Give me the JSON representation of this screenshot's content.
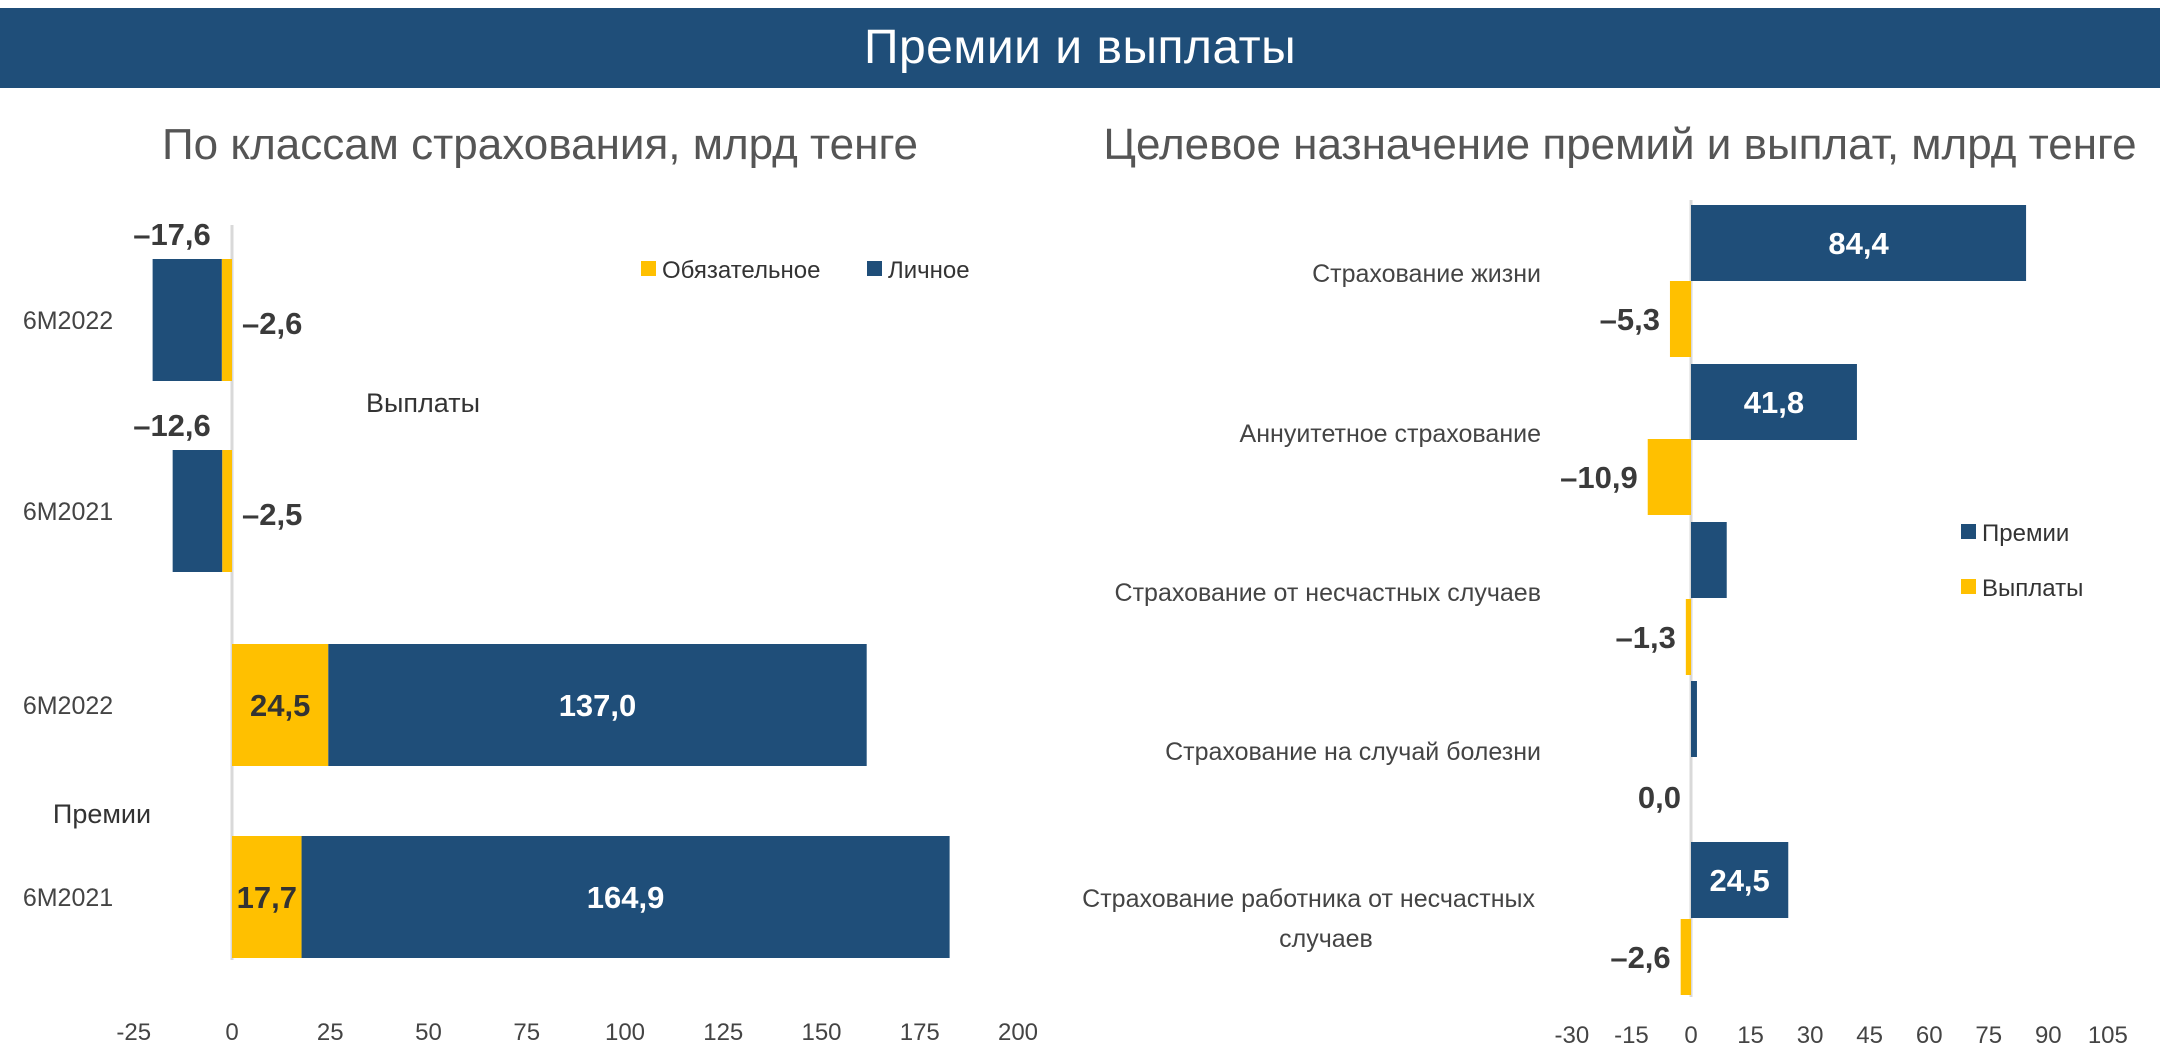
{
  "header": {
    "title": "Премии и выплаты"
  },
  "colors": {
    "header_bg": "#1f4e79",
    "navy": "#1f4e79",
    "yellow": "#ffc000"
  },
  "chart_data": [
    {
      "id": "left",
      "type": "bar",
      "orientation": "horizontal",
      "stacked": true,
      "title": "По классам страхования, млрд тенге",
      "xlim": [
        -25,
        200
      ],
      "xticks": [
        "-25",
        "0",
        "25",
        "50",
        "75",
        "100",
        "125",
        "150",
        "175",
        "200"
      ],
      "groups": [
        "Выплаты",
        "Премии"
      ],
      "categories": [
        "6M2022",
        "6M2021",
        "6M2022",
        "6M2021"
      ],
      "category_group": [
        "Выплаты",
        "Выплаты",
        "Премии",
        "Премии"
      ],
      "legend": {
        "position": "top-right",
        "entries": [
          "Обязательное",
          "Личное"
        ]
      },
      "series": [
        {
          "name": "Обязательное",
          "color": "#ffc000",
          "values": [
            -2.6,
            -2.5,
            24.5,
            17.7
          ],
          "labels": [
            "-2,6",
            "-2,5",
            "24,5",
            "17,7"
          ]
        },
        {
          "name": "Личное",
          "color": "#1f4e79",
          "values": [
            -17.6,
            -12.6,
            137.0,
            164.9
          ],
          "labels": [
            "-17,6",
            "-12,6",
            "137,0",
            "164,9"
          ]
        }
      ]
    },
    {
      "id": "right",
      "type": "bar",
      "orientation": "horizontal",
      "stacked": false,
      "title": "Целевое назначение премий и выплат, млрд тенге",
      "xlim": [
        -30,
        105
      ],
      "xticks": [
        "-30",
        "-15",
        "0",
        "15",
        "30",
        "45",
        "60",
        "75",
        "90",
        "105"
      ],
      "categories": [
        "Страхование жизни",
        "Аннуитетное страхование",
        "Страхование от несчастных случаев",
        "Страхование на случай болезни",
        "Страхование работника от несчастных случаев"
      ],
      "legend": {
        "position": "right",
        "entries": [
          "Премии",
          "Выплаты"
        ]
      },
      "series": [
        {
          "name": "Премии",
          "color": "#1f4e79",
          "values": [
            84.4,
            41.8,
            9.0,
            1.5,
            24.5
          ],
          "labels": [
            "84,4",
            "41,8",
            "",
            "",
            "24,5"
          ]
        },
        {
          "name": "Выплаты",
          "color": "#ffc000",
          "values": [
            -5.3,
            -10.9,
            -1.3,
            0.0,
            -2.6
          ],
          "labels": [
            "-5,3",
            "-10,9",
            "-1,3",
            "0,0",
            "-2,6"
          ]
        }
      ]
    }
  ]
}
